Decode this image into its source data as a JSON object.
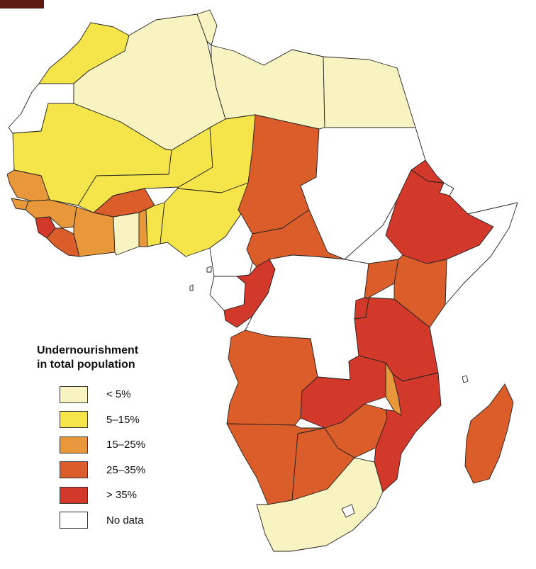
{
  "legend": {
    "title_line1": "Undernourishment",
    "title_line2": "in total population",
    "items": [
      {
        "label": "< 5%",
        "color": "#f8f4c2"
      },
      {
        "label": "5–15%",
        "color": "#f5e54a"
      },
      {
        "label": "15–25%",
        "color": "#e8973a"
      },
      {
        "label": "25–35%",
        "color": "#db5e2a"
      },
      {
        "label": "> 35%",
        "color": "#d2392a"
      },
      {
        "label": "No data",
        "color": "#ffffff"
      }
    ]
  },
  "colors": {
    "lt5": "#f8f4c2",
    "c5_15": "#f5e54a",
    "c15_25": "#e8973a",
    "c25_35": "#db5e2a",
    "gt35": "#d2392a",
    "nodata": "#ffffff",
    "accent_tab": "#5b1a12"
  }
}
